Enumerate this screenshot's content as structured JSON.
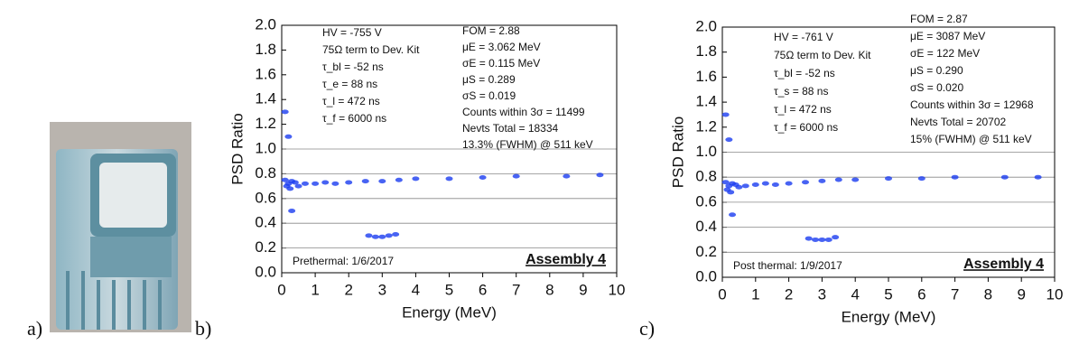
{
  "panel_labels": [
    "a)",
    "b)",
    "c)"
  ],
  "chart_data": [
    {
      "type": "scatter",
      "xlabel": "Energy (MeV)",
      "ylabel": "PSD Ratio",
      "color": "#1a3cf0",
      "grid": true,
      "xlim": [
        0,
        10
      ],
      "xticks": [
        0,
        1,
        2,
        3,
        4,
        5,
        6,
        7,
        8,
        9,
        10
      ],
      "ylim": [
        0,
        2
      ],
      "yticks": [
        {
          "value": 0,
          "label": "0.0"
        },
        0.2,
        0.4,
        0.6,
        0.8,
        {
          "value": 1,
          "label": "1.0"
        },
        1.2,
        1.4,
        1.6,
        1.8,
        {
          "value": 2,
          "label": "2.0"
        }
      ],
      "parameters": [
        "HV = -755 V",
        "75Ω term to Dev. Kit",
        "τ_bl = -52 ns",
        "τ_e = 88 ns",
        "τ_l = 472 ns",
        "τ_f = 6000 ns"
      ],
      "results": [
        "FOM = 2.88",
        "μE = 3.062 MeV",
        "σE = 0.115 MeV",
        "μS = 0.289",
        "σS = 0.019",
        "Counts within 3σ = 11499",
        "Nevts Total = 18334",
        "13.3% (FWHM) @ 511 keV"
      ],
      "note": "Prethermal: 1/6/2017",
      "label": "Assembly 4",
      "x": [
        0.1,
        0.15,
        0.2,
        0.25,
        0.3,
        0.4,
        0.5,
        0.7,
        1.0,
        1.3,
        1.6,
        2.0,
        2.5,
        3.0,
        3.5,
        4.0,
        5.0,
        6.0,
        7.0,
        8.5,
        9.5,
        2.6,
        2.8,
        3.0,
        3.2,
        3.4,
        0.2,
        0.3,
        0.1
      ],
      "y": [
        0.75,
        0.7,
        0.72,
        0.68,
        0.74,
        0.73,
        0.7,
        0.72,
        0.72,
        0.73,
        0.72,
        0.73,
        0.74,
        0.74,
        0.75,
        0.76,
        0.76,
        0.77,
        0.78,
        0.78,
        0.79,
        0.3,
        0.29,
        0.29,
        0.3,
        0.31,
        1.1,
        0.5,
        1.3
      ]
    },
    {
      "type": "scatter",
      "xlabel": "Energy (MeV)",
      "ylabel": "PSD Ratio",
      "color": "#1a3cf0",
      "grid": true,
      "xlim": [
        0,
        10
      ],
      "xticks": [
        0,
        1,
        2,
        3,
        4,
        5,
        6,
        7,
        8,
        9,
        10
      ],
      "ylim": [
        0,
        2
      ],
      "yticks": [
        {
          "value": 0,
          "label": "0.0"
        },
        0.2,
        0.4,
        0.6,
        0.8,
        {
          "value": 1,
          "label": "1.0"
        },
        1.2,
        1.4,
        1.6,
        1.8,
        {
          "value": 2,
          "label": "2.0"
        }
      ],
      "parameters": [
        "HV = -761 V",
        "75Ω term to Dev. Kit",
        "τ_bl = -52 ns",
        "τ_s = 88 ns",
        "τ_l = 472 ns",
        "τ_f = 6000 ns"
      ],
      "results": [
        "FOM = 2.87",
        "μE = 3087 MeV",
        "σE = 122 MeV",
        "μS = 0.290",
        "σS = 0.020",
        "Counts within 3σ = 12968",
        "Nevts Total = 20702",
        "15% (FWHM) @ 511 keV"
      ],
      "note": "Post thermal: 1/9/2017",
      "label": "Assembly 4",
      "x": [
        0.1,
        0.15,
        0.2,
        0.25,
        0.3,
        0.4,
        0.5,
        0.7,
        1.0,
        1.3,
        1.6,
        2.0,
        2.5,
        3.0,
        3.5,
        4.0,
        5.0,
        6.0,
        7.0,
        8.5,
        9.5,
        2.6,
        2.8,
        3.0,
        3.2,
        3.4,
        0.2,
        0.3,
        0.1
      ],
      "y": [
        0.76,
        0.7,
        0.73,
        0.68,
        0.75,
        0.74,
        0.72,
        0.73,
        0.74,
        0.75,
        0.74,
        0.75,
        0.76,
        0.77,
        0.78,
        0.78,
        0.79,
        0.79,
        0.8,
        0.8,
        0.8,
        0.31,
        0.3,
        0.3,
        0.3,
        0.32,
        1.1,
        0.5,
        1.3
      ]
    }
  ]
}
